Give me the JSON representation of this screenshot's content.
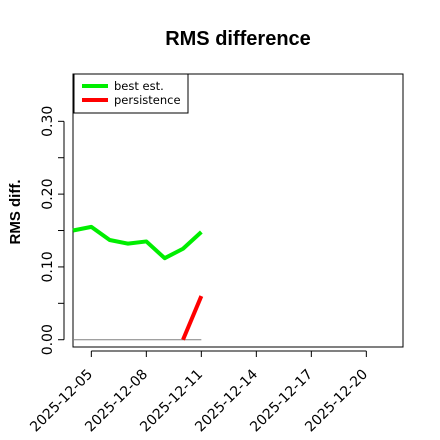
{
  "chart_data": {
    "type": "line",
    "title": "RMS difference",
    "xlabel": "",
    "ylabel": "RMS diff.",
    "x_tick_labels": [
      "2025-12-05",
      "2025-12-08",
      "2025-12-11",
      "2025-12-14",
      "2025-12-17",
      "2025-12-20"
    ],
    "y_ticks": [
      0.0,
      0.1,
      0.2,
      0.3
    ],
    "y_tick_labels": [
      "0.00",
      "0.10",
      "0.20",
      "0.30"
    ],
    "xlim": [
      "2025-12-04",
      "2025-12-22"
    ],
    "ylim": [
      -0.01,
      0.365
    ],
    "legend_position": "top-left",
    "grid": false,
    "series": [
      {
        "name": "best est.",
        "color": "#00ee00",
        "x": [
          "2025-12-04",
          "2025-12-05",
          "2025-12-06",
          "2025-12-07",
          "2025-12-08",
          "2025-12-09",
          "2025-12-10",
          "2025-12-11"
        ],
        "values": [
          0.15,
          0.155,
          0.137,
          0.132,
          0.135,
          0.112,
          0.125,
          0.148
        ]
      },
      {
        "name": "persistence",
        "color": "#ff0000",
        "x": [
          "2025-12-10",
          "2025-12-11"
        ],
        "values": [
          0.0,
          0.06
        ]
      }
    ],
    "reference_line": {
      "color": "#808080",
      "x": [
        "2025-12-04",
        "2025-12-11"
      ],
      "values": [
        0.0,
        0.0
      ]
    }
  }
}
